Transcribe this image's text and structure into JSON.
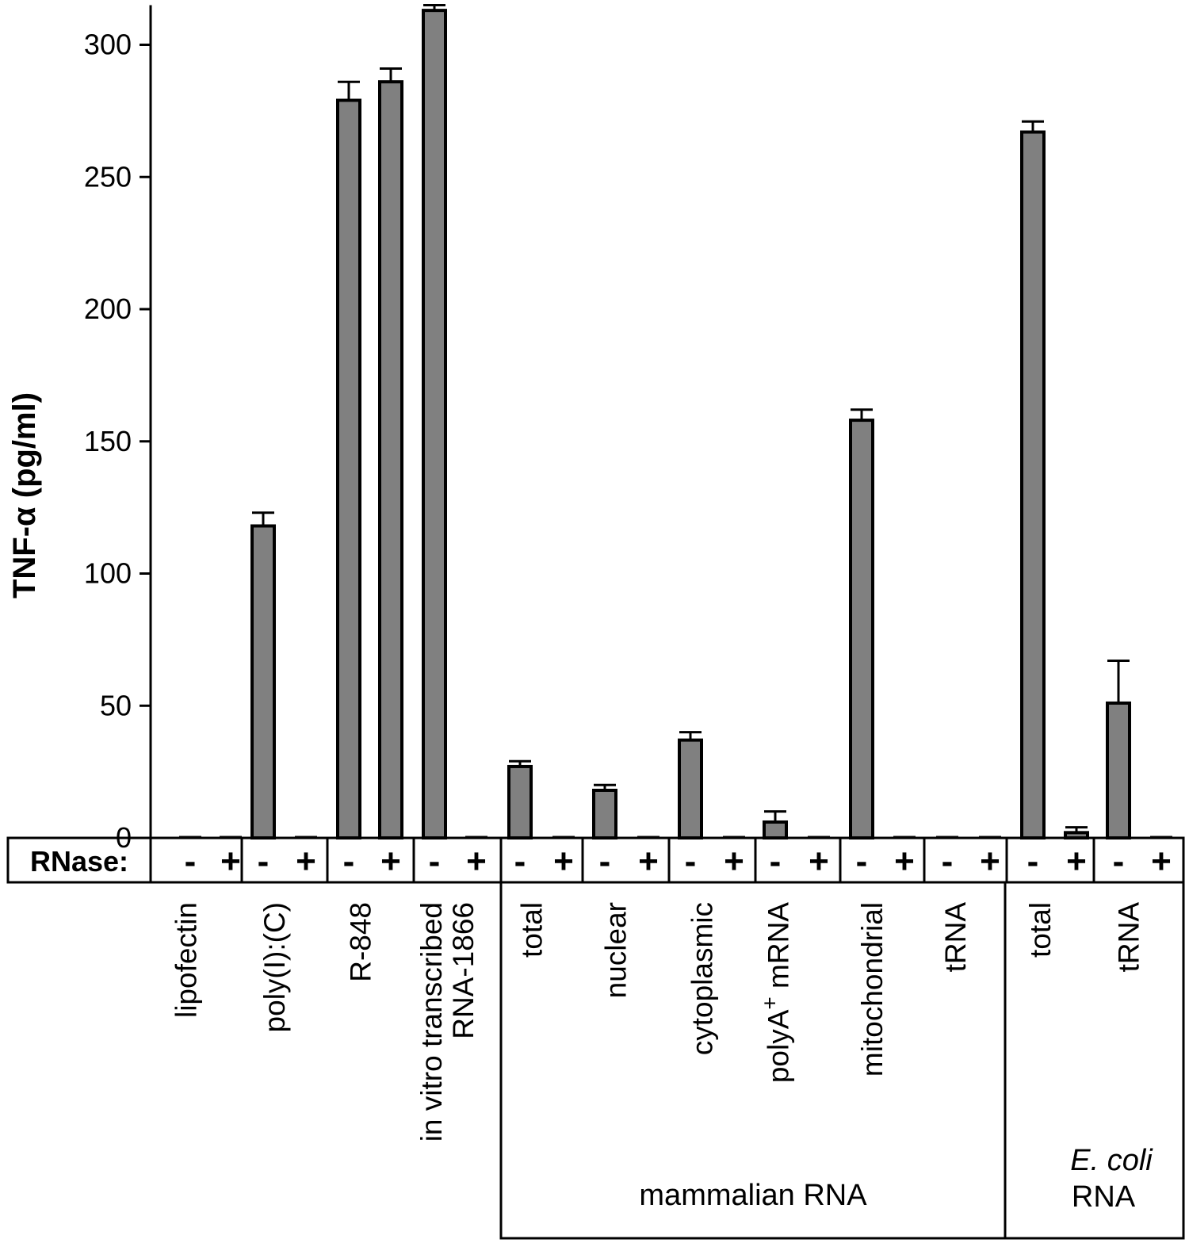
{
  "chart_data": {
    "type": "bar",
    "ylabel": "TNF-α (pg/ml)",
    "ylim": [
      0,
      315
    ],
    "yticks": [
      0,
      50,
      100,
      150,
      200,
      250,
      300
    ],
    "bar_color": "#808080",
    "rnase_label": "RNase:",
    "rnase_treatment": [
      "-",
      "+"
    ],
    "categories": [
      "lipofectin",
      "poly(I):(C)",
      "R-848",
      "in vitro transcribed RNA-1866",
      "total",
      "nuclear",
      "cytoplasmic",
      "polyA+ mRNA",
      "mitochondrial",
      "tRNA",
      "total",
      "tRNA"
    ],
    "category_lines": [
      [
        "lipofectin"
      ],
      [
        "poly(I):(C)"
      ],
      [
        "R-848"
      ],
      [
        "in vitro transcribed",
        "RNA-1866"
      ],
      [
        "total"
      ],
      [
        "nuclear"
      ],
      [
        "cytoplasmic"
      ],
      [
        "polyA",
        "+",
        " mRNA"
      ],
      [
        "mitochondrial"
      ],
      [
        "tRNA"
      ],
      [
        "total"
      ],
      [
        "tRNA"
      ]
    ],
    "series": [
      {
        "name": "-",
        "values": [
          0,
          118,
          279,
          313,
          27,
          18,
          37,
          6,
          158,
          0,
          267,
          51
        ],
        "errors": [
          0,
          5,
          7,
          2,
          2,
          2,
          3,
          4,
          4,
          0,
          4,
          16
        ]
      },
      {
        "name": "+",
        "values": [
          0,
          0,
          286,
          0,
          0,
          0,
          0,
          0,
          0,
          0,
          2,
          0
        ],
        "errors": [
          0,
          0,
          5,
          0,
          0,
          0,
          0,
          0,
          0,
          0,
          2,
          0
        ]
      }
    ],
    "groups": [
      {
        "label_lines": [
          "mammalian RNA"
        ],
        "members": [
          4,
          5,
          6,
          7,
          8,
          9
        ]
      },
      {
        "label_lines": [
          "E. coli",
          "RNA"
        ],
        "italic_first_line": true,
        "members": [
          10,
          11
        ]
      }
    ]
  }
}
